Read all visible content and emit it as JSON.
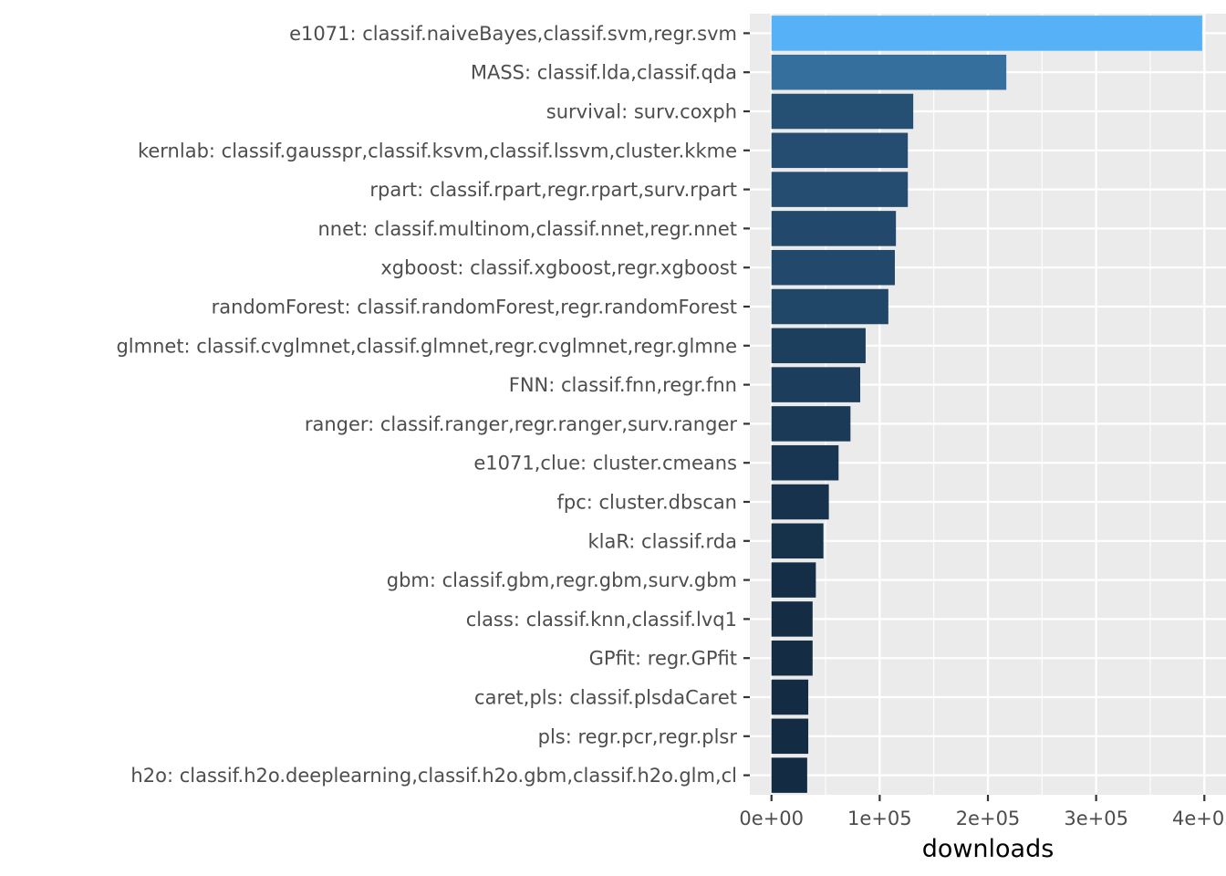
{
  "chart_data": {
    "type": "bar",
    "orientation": "horizontal",
    "xlabel": "downloads",
    "ylabel": "",
    "xlim": [
      -20000,
      420000
    ],
    "x_ticks": [
      0,
      100000,
      200000,
      300000,
      400000
    ],
    "x_tick_labels": [
      "0e+00",
      "1e+05",
      "2e+05",
      "3e+05",
      "4e+05"
    ],
    "grid": true,
    "legend": "none",
    "colors": {
      "panel": "#ebebeb",
      "grid": "#ffffff",
      "low": "#132b43",
      "high": "#56b1f7"
    },
    "categories": [
      "e1071: classif.naiveBayes,classif.svm,regr.svm",
      "MASS: classif.lda,classif.qda",
      "survival: surv.coxph",
      "kernlab: classif.gausspr,classif.ksvm,classif.lssvm,cluster.kkme",
      "rpart: classif.rpart,regr.rpart,surv.rpart",
      "nnet: classif.multinom,classif.nnet,regr.nnet",
      "xgboost: classif.xgboost,regr.xgboost",
      "randomForest: classif.randomForest,regr.randomForest",
      "glmnet: classif.cvglmnet,classif.glmnet,regr.cvglmnet,regr.glmne",
      "FNN: classif.fnn,regr.fnn",
      "ranger: classif.ranger,regr.ranger,surv.ranger",
      "e1071,clue: cluster.cmeans",
      "fpc: cluster.dbscan",
      "klaR: classif.rda",
      "gbm: classif.gbm,regr.gbm,surv.gbm",
      "class: classif.knn,classif.lvq1",
      "GPfit: regr.GPfit",
      "caret,pls: classif.plsdaCaret",
      "pls: regr.pcr,regr.plsr",
      "h2o: classif.h2o.deeplearning,classif.h2o.gbm,classif.h2o.glm,cl"
    ],
    "values": [
      398000,
      217000,
      131000,
      126000,
      126000,
      115000,
      114000,
      108000,
      87000,
      82000,
      73000,
      62000,
      53000,
      48000,
      41000,
      38000,
      38000,
      34000,
      34000,
      33000
    ]
  }
}
